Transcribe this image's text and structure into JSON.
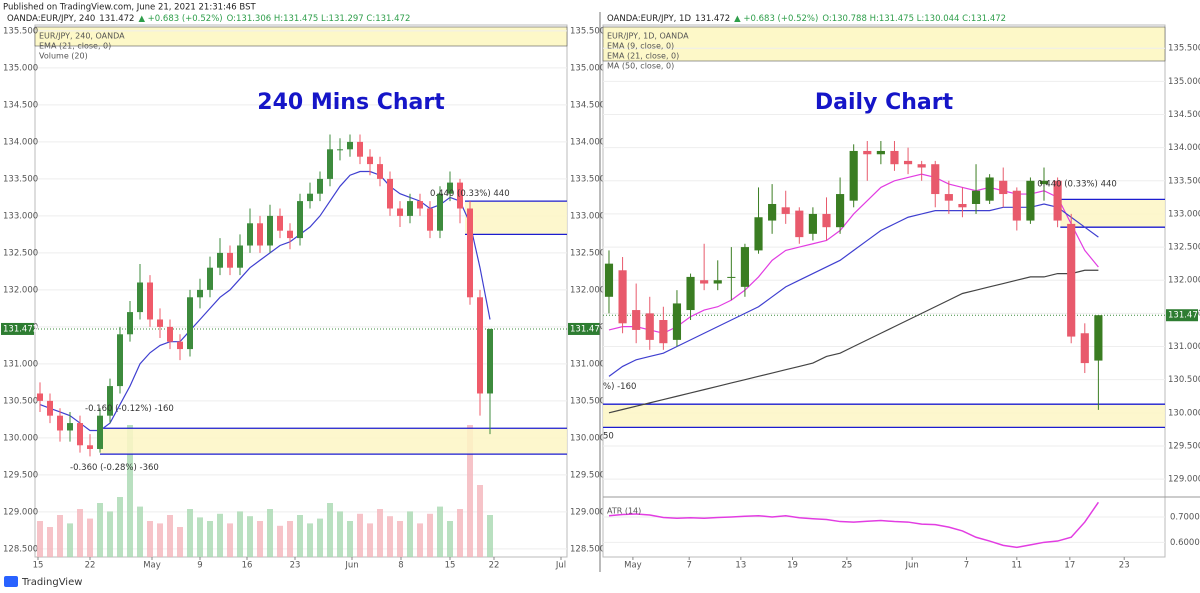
{
  "header": {
    "published": "Published on TradingView.com, June 21, 2021 21:31:46 BST",
    "brand": "TradingView"
  },
  "chart_data": [
    {
      "type": "candlestick",
      "title": "240 Mins Chart",
      "symbol": "OANDA:EUR/JPY, 240",
      "price": "131.472",
      "change": "▲ +0.683 (+0.52%)",
      "ohlc": "O:131.306 H:131.475 L:131.297 C:131.472",
      "legend": [
        "EUR/JPY, 240, OANDA",
        "EMA (21, close, 0)",
        "Volume (20)"
      ],
      "up_color": "#3d8b3d",
      "down_color": "#ef5b6a",
      "xlim": [
        -0.5,
        52.7
      ],
      "ylim": [
        128.39,
        135.58
      ],
      "xticks": [
        {
          "value": -0.2,
          "label": "15"
        },
        {
          "value": 5,
          "label": "22"
        },
        {
          "value": 11.2,
          "label": "May"
        },
        {
          "value": 16,
          "label": "9"
        },
        {
          "value": 20.7,
          "label": "16"
        },
        {
          "value": 25.5,
          "label": "23"
        },
        {
          "value": 31.2,
          "label": "Jun"
        },
        {
          "value": 36.1,
          "label": "8"
        },
        {
          "value": 41,
          "label": "15"
        },
        {
          "value": 45.4,
          "label": "22"
        },
        {
          "value": 52.1,
          "label": "Jul"
        }
      ],
      "yticks": [
        {
          "value": 128.5,
          "label": "128.500"
        },
        {
          "value": 129,
          "label": "129.000"
        },
        {
          "value": 129.5,
          "label": "129.500"
        },
        {
          "value": 130,
          "label": "130.000"
        },
        {
          "value": 130.5,
          "label": "130.500"
        },
        {
          "value": 131,
          "label": "131.000"
        },
        {
          "value": 131.5,
          "label": "131.500"
        },
        {
          "value": 132,
          "label": "132.000"
        },
        {
          "value": 132.5,
          "label": "132.500"
        },
        {
          "value": 133,
          "label": "133.000"
        },
        {
          "value": 133.5,
          "label": "133.500"
        },
        {
          "value": 134,
          "label": "134.000"
        },
        {
          "value": 134.5,
          "label": "134.500"
        },
        {
          "value": 135,
          "label": "135.000"
        },
        {
          "value": 135.5,
          "label": "135.500"
        }
      ],
      "candles": [
        [
          130.6,
          130.75,
          130.35,
          130.5
        ],
        [
          130.5,
          130.6,
          130.2,
          130.3
        ],
        [
          130.3,
          130.4,
          129.95,
          130.1
        ],
        [
          130.1,
          130.35,
          129.95,
          130.2
        ],
        [
          130.2,
          130.3,
          129.8,
          129.9
        ],
        [
          129.9,
          130.05,
          129.75,
          129.85
        ],
        [
          129.85,
          130.4,
          129.8,
          130.3
        ],
        [
          130.3,
          130.8,
          130.2,
          130.7
        ],
        [
          130.7,
          131.5,
          130.6,
          131.4
        ],
        [
          131.4,
          131.85,
          131.3,
          131.7
        ],
        [
          131.7,
          132.35,
          131.6,
          132.1
        ],
        [
          132.1,
          132.2,
          131.5,
          131.6
        ],
        [
          131.6,
          131.75,
          131.35,
          131.5
        ],
        [
          131.5,
          131.6,
          131.2,
          131.3
        ],
        [
          131.3,
          131.4,
          131.05,
          131.2
        ],
        [
          131.2,
          132.0,
          131.1,
          131.9
        ],
        [
          131.9,
          132.15,
          131.75,
          132.0
        ],
        [
          132.0,
          132.45,
          131.9,
          132.3
        ],
        [
          132.3,
          132.7,
          132.2,
          132.5
        ],
        [
          132.5,
          132.6,
          132.2,
          132.3
        ],
        [
          132.3,
          132.75,
          132.2,
          132.6
        ],
        [
          132.6,
          133.1,
          132.5,
          132.9
        ],
        [
          132.9,
          133.0,
          132.5,
          132.6
        ],
        [
          132.6,
          133.15,
          132.5,
          133.0
        ],
        [
          133.0,
          133.1,
          132.7,
          132.8
        ],
        [
          132.8,
          132.9,
          132.55,
          132.7
        ],
        [
          132.7,
          133.3,
          132.6,
          133.2
        ],
        [
          133.2,
          133.45,
          133.1,
          133.3
        ],
        [
          133.3,
          133.6,
          133.2,
          133.5
        ],
        [
          133.5,
          134.1,
          133.4,
          133.9
        ],
        [
          133.9,
          134.05,
          133.75,
          133.9
        ],
        [
          133.9,
          134.1,
          133.8,
          134.0
        ],
        [
          134.0,
          134.1,
          133.7,
          133.8
        ],
        [
          133.8,
          133.9,
          133.55,
          133.7
        ],
        [
          133.7,
          133.8,
          133.4,
          133.5
        ],
        [
          133.5,
          133.6,
          133.0,
          133.1
        ],
        [
          133.1,
          133.2,
          132.85,
          133.0
        ],
        [
          133.0,
          133.3,
          132.9,
          133.2
        ],
        [
          133.2,
          133.3,
          133.0,
          133.1
        ],
        [
          133.1,
          133.2,
          132.7,
          132.8
        ],
        [
          132.8,
          133.4,
          132.7,
          133.3
        ],
        [
          133.3,
          133.6,
          133.2,
          133.45
        ],
        [
          133.45,
          133.5,
          132.9,
          133.1
        ],
        [
          133.1,
          133.2,
          131.8,
          131.9
        ],
        [
          131.9,
          132.0,
          130.3,
          130.6
        ],
        [
          130.6,
          131.475,
          130.05,
          131.472
        ]
      ],
      "volume": [
        30,
        25,
        35,
        28,
        40,
        32,
        45,
        38,
        50,
        110,
        42,
        30,
        28,
        35,
        25,
        40,
        33,
        30,
        36,
        28,
        38,
        34,
        30,
        40,
        26,
        30,
        35,
        28,
        32,
        45,
        38,
        30,
        36,
        28,
        40,
        34,
        30,
        38,
        28,
        36,
        42,
        30,
        40,
        110,
        60,
        35
      ],
      "series": [
        {
          "name": "EMA (21, close, 0)",
          "color": "#3f3fd0",
          "values": [
            130.45,
            130.4,
            130.35,
            130.3,
            130.2,
            130.1,
            130.1,
            130.2,
            130.45,
            130.7,
            131.0,
            131.15,
            131.25,
            131.3,
            131.3,
            131.45,
            131.6,
            131.75,
            131.9,
            132.0,
            132.15,
            132.3,
            132.4,
            132.5,
            132.6,
            132.65,
            132.75,
            132.85,
            133.0,
            133.2,
            133.4,
            133.55,
            133.6,
            133.6,
            133.55,
            133.4,
            133.3,
            133.25,
            133.2,
            133.1,
            133.15,
            133.25,
            133.2,
            132.9,
            132.3,
            131.6
          ]
        }
      ],
      "last_price": {
        "value": 131.472,
        "label": "131.472"
      },
      "zones": [
        {
          "top": 133.2,
          "bottom": 132.75,
          "from": 42.5
        },
        {
          "top": 130.13,
          "bottom": 129.78,
          "from": 6
        }
      ],
      "annotations": [
        {
          "text": "0.440 (0.33%) 440",
          "x": 39,
          "y": 133.3
        },
        {
          "text": "-0.160 (-0.12%) -160",
          "x": 4.5,
          "y": 130.4
        },
        {
          "text": "-0.360 (-0.28%) -360",
          "x": 3,
          "y": 129.6
        }
      ]
    },
    {
      "type": "candlestick",
      "title": "Daily Chart",
      "symbol": "OANDA:EUR/JPY, 1D",
      "price": "131.472",
      "change": "▲ +0.683 (+0.52%)",
      "ohlc": "O:130.788 H:131.475 L:130.044 C:131.472",
      "legend": [
        "EUR/JPY, 1D, OANDA",
        "EMA (9, close, 0)",
        "EMA (21, close, 0)",
        "MA (50, close, 0)"
      ],
      "up_color": "#3a7d22",
      "down_color": "#e85a6c",
      "xlim": [
        -0.44,
        40.9
      ],
      "ylim": [
        128.73,
        135.85
      ],
      "xticks": [
        {
          "value": 1.76,
          "label": "May"
        },
        {
          "value": 5.9,
          "label": "7"
        },
        {
          "value": 9.7,
          "label": "13"
        },
        {
          "value": 13.5,
          "label": "19"
        },
        {
          "value": 17.5,
          "label": "25"
        },
        {
          "value": 22.3,
          "label": "Jun"
        },
        {
          "value": 26.3,
          "label": "7"
        },
        {
          "value": 30,
          "label": "11"
        },
        {
          "value": 33.9,
          "label": "17"
        },
        {
          "value": 37.9,
          "label": "23"
        }
      ],
      "yticks": [
        {
          "value": 129,
          "label": "129.000"
        },
        {
          "value": 129.5,
          "label": "129.500"
        },
        {
          "value": 130,
          "label": "130.000"
        },
        {
          "value": 130.5,
          "label": "130.500"
        },
        {
          "value": 131,
          "label": "131.000"
        },
        {
          "value": 131.5,
          "label": "131.500"
        },
        {
          "value": 132,
          "label": "132.000"
        },
        {
          "value": 132.5,
          "label": "132.500"
        },
        {
          "value": 133,
          "label": "133.000"
        },
        {
          "value": 133.5,
          "label": "133.500"
        },
        {
          "value": 134,
          "label": "134.000"
        },
        {
          "value": 134.5,
          "label": "134.500"
        },
        {
          "value": 135,
          "label": "135.000"
        },
        {
          "value": 135.5,
          "label": "135.500"
        }
      ],
      "candles": [
        [
          131.75,
          132.45,
          131.5,
          132.25
        ],
        [
          132.15,
          132.35,
          131.2,
          131.35
        ],
        [
          131.55,
          131.95,
          131.05,
          131.25
        ],
        [
          131.5,
          131.75,
          130.95,
          131.1
        ],
        [
          131.4,
          131.6,
          130.95,
          131.05
        ],
        [
          131.1,
          131.85,
          131.0,
          131.65
        ],
        [
          131.55,
          132.1,
          131.4,
          132.05
        ],
        [
          132.0,
          132.55,
          131.85,
          131.95
        ],
        [
          131.95,
          132.3,
          131.85,
          132.0
        ],
        [
          132.05,
          132.5,
          131.7,
          132.05
        ],
        [
          131.9,
          132.55,
          131.75,
          132.5
        ],
        [
          132.45,
          133.4,
          132.4,
          132.95
        ],
        [
          132.9,
          133.45,
          132.7,
          133.15
        ],
        [
          133.1,
          133.35,
          132.85,
          133.0
        ],
        [
          133.05,
          133.1,
          132.55,
          132.65
        ],
        [
          132.7,
          133.1,
          132.6,
          133.0
        ],
        [
          133.0,
          133.25,
          132.6,
          132.8
        ],
        [
          132.8,
          133.55,
          132.7,
          133.3
        ],
        [
          133.2,
          134.05,
          133.1,
          133.95
        ],
        [
          133.95,
          134.1,
          133.5,
          133.9
        ],
        [
          133.9,
          134.1,
          133.75,
          133.95
        ],
        [
          133.95,
          134.1,
          133.65,
          133.75
        ],
        [
          133.8,
          134.0,
          133.6,
          133.75
        ],
        [
          133.75,
          133.8,
          133.5,
          133.7
        ],
        [
          133.75,
          133.8,
          133.1,
          133.3
        ],
        [
          133.3,
          133.5,
          133.0,
          133.2
        ],
        [
          133.15,
          133.4,
          132.95,
          133.1
        ],
        [
          133.15,
          133.75,
          133.0,
          133.35
        ],
        [
          133.2,
          133.6,
          133.15,
          133.55
        ],
        [
          133.5,
          133.7,
          133.1,
          133.3
        ],
        [
          133.35,
          133.4,
          132.75,
          132.9
        ],
        [
          132.9,
          133.55,
          132.85,
          133.5
        ],
        [
          133.45,
          133.7,
          133.2,
          133.5
        ],
        [
          133.5,
          133.55,
          132.8,
          132.9
        ],
        [
          132.85,
          133.0,
          131.05,
          131.15
        ],
        [
          131.2,
          131.35,
          130.6,
          130.75
        ],
        [
          130.788,
          131.475,
          130.044,
          131.472
        ]
      ],
      "series": [
        {
          "name": "EMA (9, close, 0)",
          "color": "#e23de2",
          "values": [
            131.25,
            131.3,
            131.3,
            131.25,
            131.2,
            131.3,
            131.45,
            131.55,
            131.6,
            131.7,
            131.85,
            132.05,
            132.3,
            132.45,
            132.5,
            132.55,
            132.6,
            132.75,
            133.0,
            133.2,
            133.4,
            133.5,
            133.55,
            133.6,
            133.55,
            133.45,
            133.4,
            133.35,
            133.4,
            133.35,
            133.3,
            133.3,
            133.35,
            133.25,
            132.85,
            132.45,
            132.2
          ]
        },
        {
          "name": "EMA (21, close, 0)",
          "color": "#3f3fd0",
          "values": [
            130.55,
            130.7,
            130.8,
            130.85,
            130.9,
            131.0,
            131.1,
            131.2,
            131.3,
            131.4,
            131.5,
            131.6,
            131.75,
            131.9,
            132.0,
            132.1,
            132.2,
            132.3,
            132.45,
            132.6,
            132.75,
            132.85,
            132.95,
            133.0,
            133.05,
            133.05,
            133.05,
            133.05,
            133.05,
            133.1,
            133.1,
            133.1,
            133.15,
            133.1,
            132.95,
            132.8,
            132.65
          ]
        },
        {
          "name": "MA (50, close, 0)",
          "color": "#444444",
          "values": [
            130.0,
            130.05,
            130.1,
            130.15,
            130.2,
            130.25,
            130.3,
            130.35,
            130.4,
            130.45,
            130.5,
            130.55,
            130.6,
            130.65,
            130.7,
            130.75,
            130.85,
            130.9,
            131.0,
            131.1,
            131.2,
            131.3,
            131.4,
            131.5,
            131.6,
            131.7,
            131.8,
            131.85,
            131.9,
            131.95,
            132.0,
            132.05,
            132.05,
            132.1,
            132.1,
            132.15,
            132.15
          ]
        }
      ],
      "last_price": {
        "value": 131.472,
        "label": "131.472"
      },
      "zones": [
        {
          "top": 133.22,
          "bottom": 132.8,
          "from": 33.2
        },
        {
          "top": 130.13,
          "bottom": 129.78,
          "from": -0.44
        }
      ],
      "annotations": [
        {
          "text": "0.440 (0.33%) 440",
          "x": 31.5,
          "y": 133.45
        },
        {
          "text": "%) -160",
          "x": -0.44,
          "y": 130.4
        },
        {
          "text": "50",
          "x": -0.44,
          "y": 129.65
        }
      ],
      "indicator": {
        "name": "ATR (14)",
        "color": "#e23de2",
        "ylim": [
          0.542,
          0.779
        ],
        "yticks": [
          {
            "value": 0.6,
            "label": "0.6000"
          },
          {
            "value": 0.7,
            "label": "0.7000"
          }
        ],
        "values": [
          0.705,
          0.71,
          0.712,
          0.708,
          0.698,
          0.695,
          0.697,
          0.695,
          0.698,
          0.7,
          0.703,
          0.705,
          0.7,
          0.705,
          0.697,
          0.693,
          0.69,
          0.682,
          0.68,
          0.683,
          0.686,
          0.682,
          0.68,
          0.672,
          0.67,
          0.66,
          0.645,
          0.62,
          0.605,
          0.588,
          0.58,
          0.59,
          0.6,
          0.605,
          0.62,
          0.68,
          0.758
        ]
      }
    }
  ]
}
